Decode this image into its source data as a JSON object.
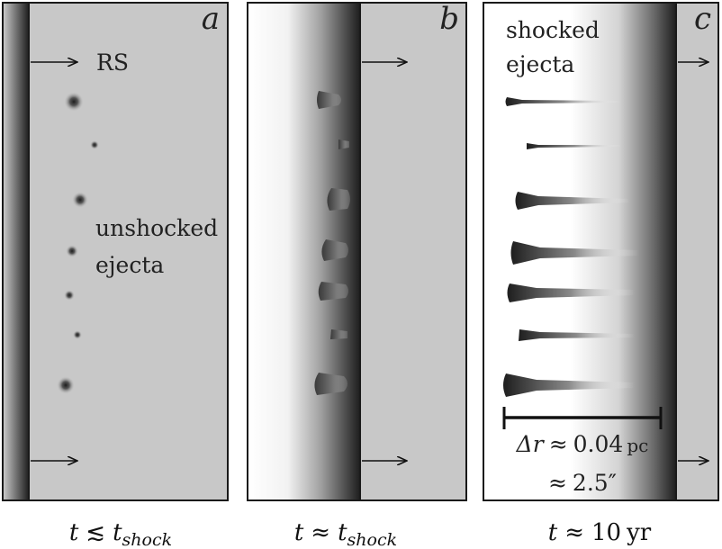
{
  "panels": [
    {
      "letter": "a",
      "caption_lhs": "t",
      "caption_rel": "≲",
      "caption_rhs": "t",
      "caption_sub": "shock"
    },
    {
      "letter": "b",
      "caption_lhs": "t",
      "caption_rel": "≈",
      "caption_rhs": "t",
      "caption_sub": "shock"
    },
    {
      "letter": "c",
      "caption_lhs": "t",
      "caption_rel": "≈",
      "caption_value": "10",
      "caption_unit": "yr"
    }
  ],
  "labels": {
    "rs": "RS",
    "unshocked_1": "unshocked",
    "unshocked_2": "ejecta",
    "shocked_1": "shocked",
    "shocked_2": "ejecta"
  },
  "scale_bar": {
    "line1_symbol": "Δr",
    "line1_rel": "≈",
    "line1_value": "0.04",
    "line1_unit": "pc",
    "line2_rel": "≈",
    "line2_value": "2.5″"
  },
  "colors": {
    "background_gray": "#c8c8c8",
    "border": "#1a1a1a",
    "shock_dark": "#2a2a2a"
  }
}
